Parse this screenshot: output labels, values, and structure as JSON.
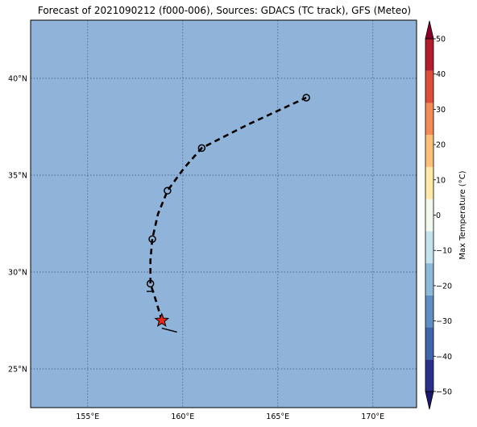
{
  "title": "Forecast of 2021090212 (f000-006), Sources: GDACS (TC track), GFS (Meteo)",
  "map": {
    "ocean_color": "#90b4d9",
    "grid_color": "#4a6a90",
    "lon_range": [
      152,
      172.3
    ],
    "lat_range": [
      23,
      43
    ],
    "lon_ticks": [
      {
        "value": 155,
        "label": "155°E"
      },
      {
        "value": 160,
        "label": "160°E"
      },
      {
        "value": 165,
        "label": "165°E"
      },
      {
        "value": 170,
        "label": "170°E"
      }
    ],
    "lat_ticks": [
      {
        "value": 40,
        "label": "40°N"
      },
      {
        "value": 35,
        "label": "35°N"
      },
      {
        "value": 30,
        "label": "30°N"
      },
      {
        "value": 25,
        "label": "25°N"
      }
    ]
  },
  "track": {
    "line_color": "#000000",
    "points": [
      {
        "lon": 158.9,
        "lat": 27.5
      },
      {
        "lon": 158.6,
        "lat": 28.5
      },
      {
        "lon": 158.3,
        "lat": 29.4
      },
      {
        "lon": 158.3,
        "lat": 30.6
      },
      {
        "lon": 158.4,
        "lat": 31.7
      },
      {
        "lon": 158.7,
        "lat": 33.0
      },
      {
        "lon": 159.2,
        "lat": 34.2
      },
      {
        "lon": 160.1,
        "lat": 35.4
      },
      {
        "lon": 161.0,
        "lat": 36.4
      },
      {
        "lon": 163.4,
        "lat": 37.6
      },
      {
        "lon": 166.5,
        "lat": 39.0
      }
    ],
    "markers": [
      {
        "lon": 158.3,
        "lat": 29.4
      },
      {
        "lon": 158.4,
        "lat": 31.7
      },
      {
        "lon": 159.2,
        "lat": 34.2
      },
      {
        "lon": 161.0,
        "lat": 36.4
      },
      {
        "lon": 166.5,
        "lat": 39.0
      }
    ],
    "current_position": {
      "lon": 158.9,
      "lat": 27.5,
      "color": "#e8241c"
    },
    "wind_barb": {
      "from": {
        "lon": 158.9,
        "lat": 27.1
      },
      "to": {
        "lon": 159.7,
        "lat": 26.9
      }
    },
    "small_barb": {
      "from": {
        "lon": 158.1,
        "lat": 29.0
      },
      "to": {
        "lon": 158.5,
        "lat": 29.0
      }
    }
  },
  "colorbar": {
    "label": "Max Temperature (°C)",
    "min": -50,
    "max": 50,
    "colors": [
      "#2b2f8c",
      "#3f66ad",
      "#5e8fc4",
      "#8ebad9",
      "#c4e3ee",
      "#f2f9ee",
      "#fee9a8",
      "#fcc07a",
      "#f48a56",
      "#dc4e38",
      "#b31d2e"
    ],
    "under_color": "#191970",
    "over_color": "#8a0028",
    "ticks": [
      {
        "value": 50,
        "label": "50"
      },
      {
        "value": 40,
        "label": "40"
      },
      {
        "value": 30,
        "label": "30"
      },
      {
        "value": 20,
        "label": "20"
      },
      {
        "value": 10,
        "label": "10"
      },
      {
        "value": 0,
        "label": "0"
      },
      {
        "value": -10,
        "label": "−10"
      },
      {
        "value": -20,
        "label": "−20"
      },
      {
        "value": -30,
        "label": "−30"
      },
      {
        "value": -40,
        "label": "−40"
      },
      {
        "value": -50,
        "label": "−50"
      }
    ]
  }
}
